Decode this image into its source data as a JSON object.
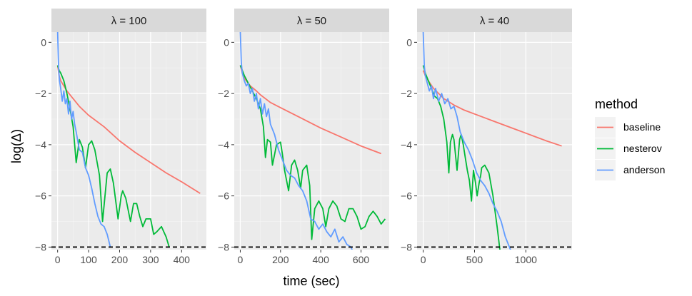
{
  "chart_data": {
    "type": "line",
    "xlabel": "time (sec)",
    "ylabel": "log(Δ)",
    "yticks": [
      0,
      -2,
      -4,
      -6,
      -8
    ],
    "ylim": [
      -8.1,
      0.4
    ],
    "threshold": -8,
    "legend": {
      "title": "method",
      "position": "right",
      "entries": [
        {
          "name": "baseline",
          "color": "#F8766D"
        },
        {
          "name": "nesterov",
          "color": "#00BA38"
        },
        {
          "name": "anderson",
          "color": "#619CFF"
        }
      ]
    },
    "facets": [
      {
        "label": "λ = 100",
        "xlim": [
          -20,
          480
        ],
        "xticks": [
          0,
          100,
          200,
          300,
          400
        ],
        "series": [
          {
            "name": "baseline",
            "x": [
              0,
              5,
              10,
              20,
              30,
              40,
              50,
              70,
              100,
              150,
              200,
              250,
              300,
              350,
              400,
              460
            ],
            "y": [
              -0.9,
              -1.3,
              -1.5,
              -1.7,
              -1.9,
              -2.05,
              -2.2,
              -2.5,
              -2.85,
              -3.3,
              -3.85,
              -4.3,
              -4.7,
              -5.1,
              -5.45,
              -5.9
            ]
          },
          {
            "name": "nesterov",
            "x": [
              0,
              5,
              10,
              20,
              30,
              40,
              50,
              60,
              70,
              80,
              90,
              100,
              110,
              120,
              135,
              145,
              160,
              170,
              180,
              195,
              205,
              210,
              220,
              235,
              245,
              255,
              265,
              275,
              285,
              300,
              310,
              320,
              335,
              350,
              360
            ],
            "y": [
              -0.9,
              -1.1,
              -1.2,
              -1.5,
              -2.0,
              -2.6,
              -3.3,
              -4.7,
              -3.8,
              -4.1,
              -4.9,
              -4.0,
              -3.85,
              -4.2,
              -5.2,
              -7.0,
              -5.1,
              -4.95,
              -5.5,
              -6.9,
              -6.0,
              -5.8,
              -6.1,
              -7.0,
              -6.3,
              -6.3,
              -6.8,
              -7.2,
              -6.9,
              -6.9,
              -7.5,
              -7.4,
              -7.2,
              -7.6,
              -8.0
            ]
          },
          {
            "name": "anderson",
            "x": [
              0,
              3,
              6,
              10,
              15,
              20,
              25,
              30,
              35,
              40,
              45,
              50,
              55,
              60,
              70,
              80,
              90,
              100,
              110,
              120,
              130,
              140,
              150,
              160,
              170
            ],
            "y": [
              0.4,
              -1.0,
              -1.5,
              -1.8,
              -2.3,
              -1.9,
              -2.4,
              -2.2,
              -2.8,
              -2.3,
              -3.0,
              -2.7,
              -3.2,
              -3.5,
              -4.2,
              -4.3,
              -4.9,
              -5.2,
              -5.7,
              -6.3,
              -6.8,
              -7.1,
              -7.2,
              -7.5,
              -8.0
            ]
          }
        ]
      },
      {
        "label": "λ = 50",
        "xlim": [
          -30,
          740
        ],
        "xticks": [
          0,
          200,
          400,
          600
        ],
        "series": [
          {
            "name": "baseline",
            "x": [
              0,
              10,
              20,
              50,
              80,
              100,
              150,
              200,
              300,
              400,
              500,
              600,
              700
            ],
            "y": [
              -0.9,
              -1.2,
              -1.4,
              -1.7,
              -1.9,
              -2.05,
              -2.35,
              -2.55,
              -2.95,
              -3.35,
              -3.7,
              -4.05,
              -4.35
            ]
          },
          {
            "name": "nesterov",
            "x": [
              0,
              20,
              40,
              60,
              80,
              100,
              115,
              125,
              135,
              150,
              160,
              180,
              200,
              210,
              220,
              240,
              255,
              270,
              285,
              300,
              310,
              330,
              345,
              355,
              370,
              390,
              410,
              425,
              440,
              460,
              480,
              500,
              520,
              540,
              560,
              580,
              600,
              620,
              640,
              660,
              680,
              700,
              720
            ],
            "y": [
              -0.9,
              -1.3,
              -1.6,
              -1.9,
              -2.2,
              -2.6,
              -3.3,
              -4.5,
              -3.8,
              -3.9,
              -4.8,
              -4.0,
              -3.9,
              -4.4,
              -5.0,
              -5.8,
              -4.8,
              -4.6,
              -5.0,
              -5.7,
              -5.0,
              -4.8,
              -5.6,
              -7.7,
              -6.5,
              -6.2,
              -6.5,
              -7.2,
              -6.5,
              -6.2,
              -6.4,
              -6.9,
              -7.0,
              -6.5,
              -6.5,
              -6.8,
              -7.3,
              -7.2,
              -6.8,
              -6.6,
              -6.8,
              -7.1,
              -6.9
            ]
          },
          {
            "name": "anderson",
            "x": [
              0,
              5,
              10,
              20,
              30,
              40,
              50,
              60,
              70,
              80,
              90,
              100,
              110,
              120,
              130,
              140,
              150,
              170,
              190,
              210,
              230,
              250,
              270,
              290,
              310,
              330,
              350,
              370,
              390,
              410,
              430,
              450,
              470,
              490,
              510,
              530,
              550,
              560
            ],
            "y": [
              0.4,
              -0.8,
              -1.2,
              -1.5,
              -1.7,
              -1.6,
              -2.0,
              -1.8,
              -2.3,
              -2.0,
              -2.6,
              -2.2,
              -2.8,
              -2.4,
              -2.9,
              -2.6,
              -3.2,
              -3.6,
              -4.2,
              -4.6,
              -5.0,
              -5.2,
              -5.3,
              -5.6,
              -5.8,
              -6.2,
              -6.9,
              -7.0,
              -7.3,
              -7.1,
              -7.4,
              -7.6,
              -7.3,
              -7.8,
              -7.6,
              -7.9,
              -8.0,
              -8.2
            ]
          }
        ]
      },
      {
        "label": "λ = 40",
        "xlim": [
          -60,
          1450
        ],
        "xticks": [
          0,
          500,
          1000
        ],
        "series": [
          {
            "name": "baseline",
            "x": [
              0,
              20,
              50,
              100,
              200,
              300,
              400,
              500,
              600,
              700,
              800,
              900,
              1000,
              1100,
              1200,
              1350
            ],
            "y": [
              -1.1,
              -1.3,
              -1.5,
              -1.8,
              -2.2,
              -2.45,
              -2.65,
              -2.8,
              -2.95,
              -3.1,
              -3.25,
              -3.4,
              -3.55,
              -3.7,
              -3.85,
              -4.05
            ]
          },
          {
            "name": "nesterov",
            "x": [
              0,
              20,
              50,
              80,
              110,
              140,
              170,
              200,
              230,
              250,
              265,
              285,
              300,
              330,
              355,
              370,
              390,
              410,
              430,
              450,
              470,
              490,
              510,
              525,
              545,
              560,
              570,
              600,
              640,
              680,
              720,
              750
            ],
            "y": [
              -0.9,
              -1.2,
              -1.5,
              -1.8,
              -2.1,
              -2.2,
              -2.5,
              -3.0,
              -3.9,
              -5.1,
              -3.9,
              -3.6,
              -3.8,
              -5.0,
              -3.8,
              -3.6,
              -4.0,
              -4.5,
              -5.0,
              -5.4,
              -6.2,
              -5.0,
              -5.5,
              -6.0,
              -5.5,
              -5.2,
              -4.9,
              -4.8,
              -5.1,
              -6.0,
              -7.2,
              -8.2
            ]
          },
          {
            "name": "anderson",
            "x": [
              0,
              10,
              20,
              40,
              60,
              80,
              100,
              120,
              150,
              180,
              210,
              240,
              270,
              300,
              330,
              360,
              400,
              440,
              480,
              520,
              560,
              600,
              640,
              680,
              720,
              760,
              800,
              830,
              860
            ],
            "y": [
              0.4,
              -0.9,
              -1.3,
              -1.6,
              -1.9,
              -1.7,
              -2.2,
              -1.8,
              -2.3,
              -2.0,
              -2.4,
              -2.2,
              -2.6,
              -2.5,
              -2.9,
              -3.5,
              -3.9,
              -4.2,
              -4.6,
              -5.1,
              -5.4,
              -5.6,
              -5.9,
              -6.3,
              -6.6,
              -7.0,
              -7.6,
              -7.9,
              -8.2
            ]
          }
        ]
      }
    ]
  }
}
